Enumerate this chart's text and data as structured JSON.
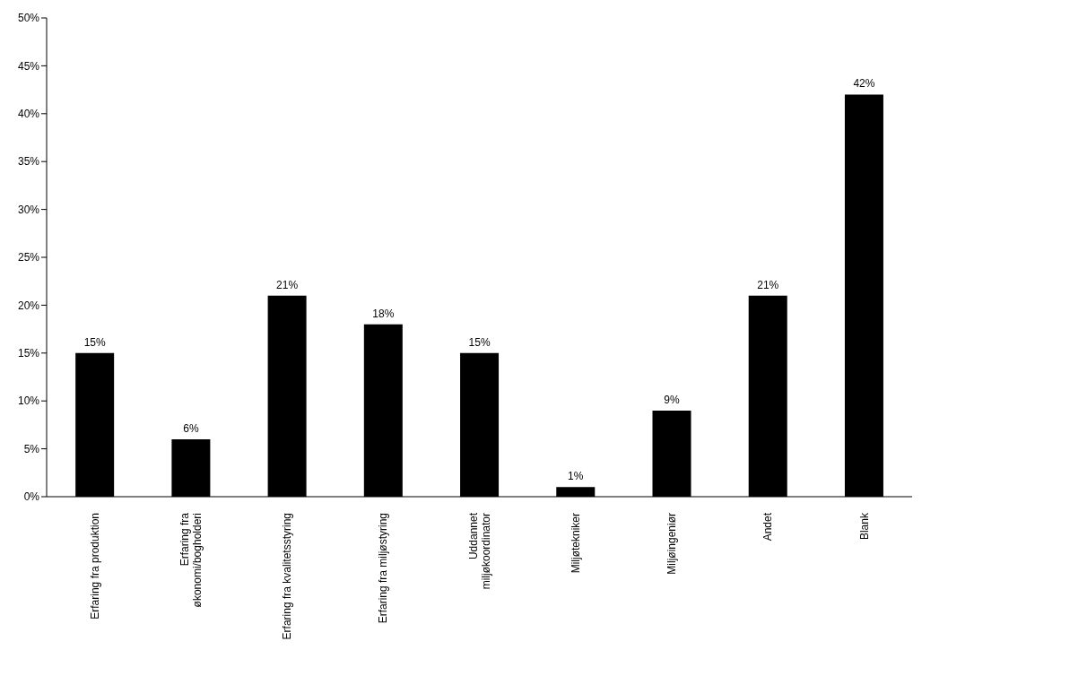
{
  "chart_data": {
    "type": "bar",
    "categories": [
      "Erfaring fra produktion",
      "Erfaring fra\nøkonomi/bogholderi",
      "Erfaring fra kvalitetsstyring",
      "Erfaring fra miljøstyring",
      "Uddannet\nmiljøkoordinator",
      "Miljøtekniker",
      "Miljøingeniør",
      "Andet",
      "Blank"
    ],
    "values": [
      15,
      6,
      21,
      18,
      15,
      1,
      9,
      21,
      42
    ],
    "value_labels": [
      "15%",
      "6%",
      "21%",
      "18%",
      "15%",
      "1%",
      "9%",
      "21%",
      "42%"
    ],
    "color": "#000000",
    "ylim": [
      0,
      50
    ],
    "yticks": [
      {
        "value": 0,
        "label": "0%"
      },
      {
        "value": 5,
        "label": "5%"
      },
      {
        "value": 10,
        "label": "10%"
      },
      {
        "value": 15,
        "label": "15%"
      },
      {
        "value": 20,
        "label": "20%"
      },
      {
        "value": 25,
        "label": "25%"
      },
      {
        "value": 30,
        "label": "30%"
      },
      {
        "value": 35,
        "label": "35%"
      },
      {
        "value": 40,
        "label": "40%"
      },
      {
        "value": 45,
        "label": "45%"
      },
      {
        "value": 50,
        "label": "50%"
      }
    ],
    "grid": false,
    "legend": false
  }
}
